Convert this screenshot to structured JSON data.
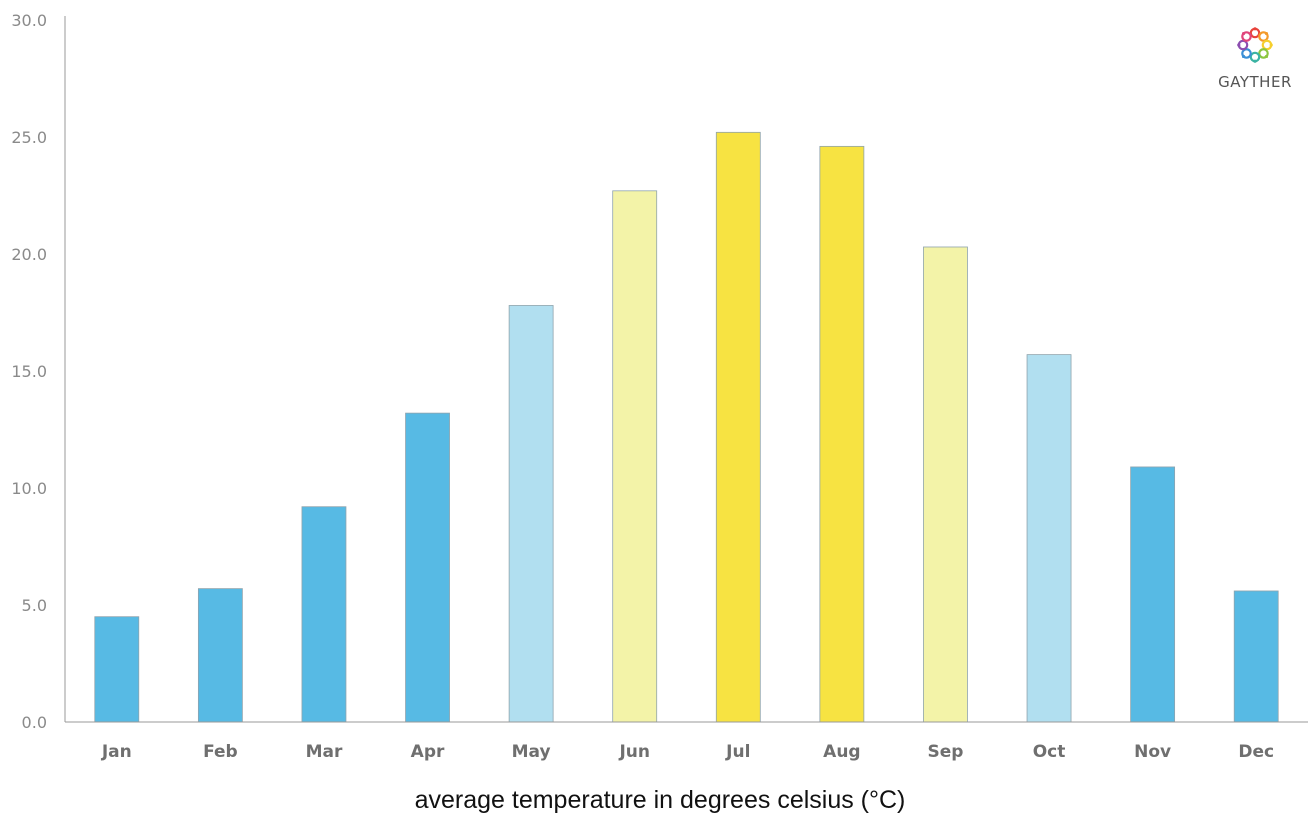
{
  "chart_data": {
    "type": "bar",
    "categories": [
      "Jan",
      "Feb",
      "Mar",
      "Apr",
      "May",
      "Jun",
      "Jul",
      "Aug",
      "Sep",
      "Oct",
      "Nov",
      "Dec"
    ],
    "values": [
      4.5,
      5.7,
      9.2,
      13.2,
      17.8,
      22.7,
      25.2,
      24.6,
      20.3,
      15.7,
      10.9,
      5.6
    ],
    "bar_colors": [
      "#57bae4",
      "#57bae4",
      "#57bae4",
      "#57bae4",
      "#b1dff0",
      "#f3f3a8",
      "#f7e342",
      "#f7e342",
      "#f3f3a8",
      "#b1dff0",
      "#57bae4",
      "#57bae4"
    ],
    "ylim": [
      0,
      30
    ],
    "yticks": [
      0,
      5,
      10,
      15,
      20,
      25,
      30
    ],
    "ytick_labels": [
      "0.0",
      "5.0",
      "10.0",
      "15.0",
      "20.0",
      "25.0",
      "30.0"
    ],
    "xlabel": "average temperature in degrees celsius (°C)",
    "ylabel": "",
    "title": "",
    "grid": false,
    "legend": "none"
  },
  "logo": {
    "text": "GAYTHER",
    "icon": "flower-ring-logo-icon",
    "colors": [
      "#e8433b",
      "#f39a2b",
      "#f6cf2e",
      "#8cc63f",
      "#3bb3a3",
      "#3a8fd6",
      "#8c4fb0",
      "#e0457b"
    ]
  },
  "axis_color": "#999999"
}
